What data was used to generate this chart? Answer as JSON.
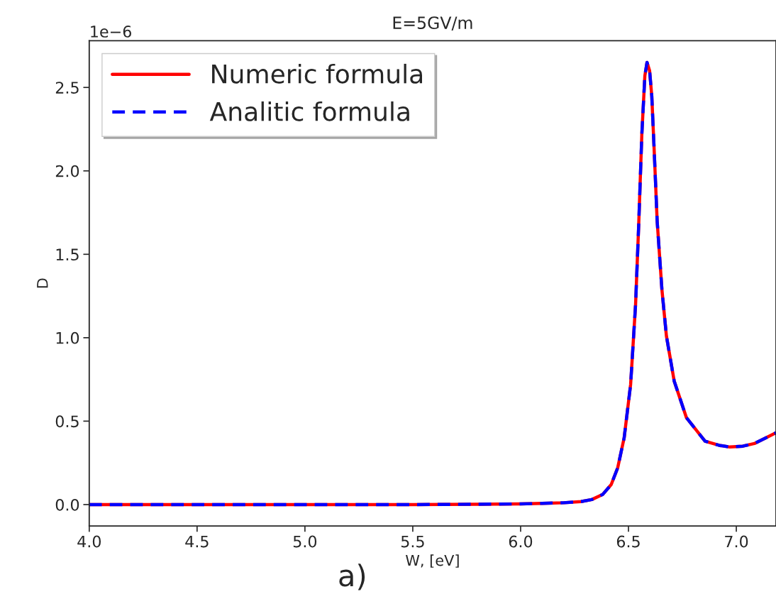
{
  "chart_data": {
    "type": "line",
    "title": "E=5GV/m",
    "xlabel": "W, [eV]",
    "ylabel": "D",
    "x": [
      4.0,
      4.5,
      5.0,
      5.5,
      5.8,
      6.0,
      6.1,
      6.2,
      6.28,
      6.33,
      6.38,
      6.42,
      6.45,
      6.48,
      6.51,
      6.533,
      6.547,
      6.562,
      6.576,
      6.586,
      6.598,
      6.608,
      6.619,
      6.633,
      6.655,
      6.676,
      6.712,
      6.769,
      6.855,
      6.92,
      6.97,
      7.03,
      7.084,
      7.184
    ],
    "series": [
      {
        "name": "Numeric formula",
        "color": "#ff0000",
        "line_style": "solid",
        "values": [
          0.0,
          0.0,
          0.0,
          0.0,
          0.002,
          0.004,
          0.007,
          0.011,
          0.018,
          0.03,
          0.06,
          0.12,
          0.22,
          0.4,
          0.72,
          1.2,
          1.66,
          2.22,
          2.57,
          2.65,
          2.6,
          2.45,
          2.13,
          1.7,
          1.29,
          1.01,
          0.74,
          0.52,
          0.38,
          0.355,
          0.345,
          0.35,
          0.366,
          0.43
        ]
      },
      {
        "name": "Analitic formula",
        "color": "#0000ff",
        "line_style": "dashed",
        "values": [
          0.0,
          0.0,
          0.0,
          0.0,
          0.002,
          0.004,
          0.007,
          0.011,
          0.018,
          0.03,
          0.06,
          0.12,
          0.22,
          0.4,
          0.72,
          1.2,
          1.66,
          2.22,
          2.57,
          2.65,
          2.6,
          2.45,
          2.13,
          1.7,
          1.29,
          1.01,
          0.74,
          0.52,
          0.38,
          0.355,
          0.345,
          0.35,
          0.366,
          0.43
        ]
      }
    ],
    "xlim": [
      4.0,
      7.184
    ],
    "ylim": [
      -0.128,
      2.78
    ],
    "xticks": [
      {
        "value": 4,
        "label": "4.0"
      },
      4.5,
      {
        "value": 5,
        "label": "5.0"
      },
      5.5,
      {
        "value": 6,
        "label": "6.0"
      },
      6.5,
      {
        "value": 7,
        "label": "7.0"
      }
    ],
    "yticks": [
      {
        "value": 0,
        "label": "0.0"
      },
      0.5,
      {
        "value": 1,
        "label": "1.0"
      },
      1.5,
      {
        "value": 2,
        "label": "2.0"
      },
      2.5
    ],
    "annotations": [
      "1e−6",
      "a)"
    ],
    "legend": "top left",
    "grid": false
  }
}
